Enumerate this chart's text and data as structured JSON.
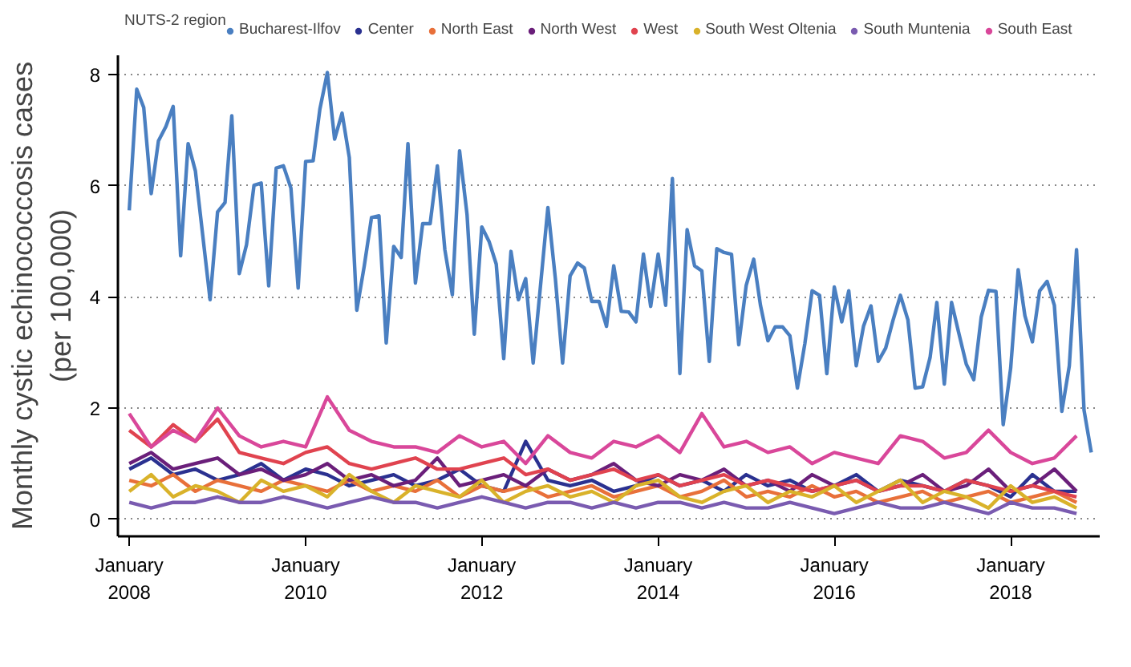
{
  "chart_data": {
    "type": "line",
    "ylabel": "Monthly cystic echinococcosis cases\n(per 100,000)",
    "legend_title": "NUTS-2 region",
    "legend": "top",
    "grid": "y",
    "marker": "none",
    "line_style": "solid",
    "xlim": [
      "2007-11-15",
      "2019-01-05"
    ],
    "xticks": [
      {
        "value": "2008-01-01",
        "label": "January\n2008"
      },
      {
        "value": "2010-01-01",
        "label": "January\n2010"
      },
      {
        "value": "2012-01-01",
        "label": "January\n2012"
      },
      {
        "value": "2014-01-01",
        "label": "January\n2014"
      },
      {
        "value": "2016-01-01",
        "label": "January\n2016"
      },
      {
        "value": "2018-01-01",
        "label": "January\n2018"
      }
    ],
    "ylim": [
      -0.31,
      8.35
    ],
    "yticks": [
      0,
      2,
      4,
      6,
      8
    ],
    "x": [
      "2008-01",
      "2008-04",
      "2008-07",
      "2008-10",
      "2009-01",
      "2009-04",
      "2009-07",
      "2009-10",
      "2010-01",
      "2010-04",
      "2010-07",
      "2010-10",
      "2011-01",
      "2011-04",
      "2011-07",
      "2011-10",
      "2012-01",
      "2012-04",
      "2012-07",
      "2012-10",
      "2013-01",
      "2013-04",
      "2013-07",
      "2013-10",
      "2014-01",
      "2014-04",
      "2014-07",
      "2014-10",
      "2015-01",
      "2015-04",
      "2015-07",
      "2015-10",
      "2016-01",
      "2016-04",
      "2016-07",
      "2016-10",
      "2017-01",
      "2017-04",
      "2017-07",
      "2017-10",
      "2018-01",
      "2018-04",
      "2018-07",
      "2018-10"
    ],
    "series": [
      {
        "name": "Bucharest-Ilfov",
        "color": "#4a7fc1",
        "x": [
          "2008-01",
          "2008-02",
          "2008-03",
          "2008-04",
          "2008-05",
          "2008-06",
          "2008-07",
          "2008-08",
          "2008-09",
          "2008-10",
          "2008-11",
          "2008-12",
          "2009-01",
          "2009-02",
          "2009-03",
          "2009-04",
          "2009-05",
          "2009-06",
          "2009-07",
          "2009-08",
          "2009-09",
          "2009-10",
          "2009-11",
          "2009-12",
          "2010-01",
          "2010-02",
          "2010-03",
          "2010-04",
          "2010-05",
          "2010-06",
          "2010-07",
          "2010-08",
          "2010-09",
          "2010-10",
          "2010-11",
          "2010-12",
          "2011-01",
          "2011-02",
          "2011-03",
          "2011-04",
          "2011-05",
          "2011-06",
          "2011-07",
          "2011-08",
          "2011-09",
          "2011-10",
          "2011-11",
          "2011-12",
          "2012-01",
          "2012-02",
          "2012-03",
          "2012-04",
          "2012-05",
          "2012-06",
          "2012-07",
          "2012-08",
          "2012-09",
          "2012-10",
          "2012-11",
          "2012-12",
          "2013-01",
          "2013-02",
          "2013-03",
          "2013-04",
          "2013-05",
          "2013-06",
          "2013-07",
          "2013-08",
          "2013-09",
          "2013-10",
          "2013-11",
          "2013-12",
          "2014-01",
          "2014-02",
          "2014-03",
          "2014-04",
          "2014-05",
          "2014-06",
          "2014-07",
          "2014-08",
          "2014-09",
          "2014-10",
          "2014-11",
          "2014-12",
          "2015-01",
          "2015-02",
          "2015-03",
          "2015-04",
          "2015-05",
          "2015-06",
          "2015-07",
          "2015-08",
          "2015-09",
          "2015-10",
          "2015-11",
          "2015-12",
          "2016-01",
          "2016-02",
          "2016-03",
          "2016-04",
          "2016-05",
          "2016-06",
          "2016-07",
          "2016-08",
          "2016-09",
          "2016-10",
          "2016-11",
          "2016-12",
          "2017-01",
          "2017-02",
          "2017-03",
          "2017-04",
          "2017-05",
          "2017-06",
          "2017-07",
          "2017-08",
          "2017-09",
          "2017-10",
          "2017-11",
          "2017-12",
          "2018-01",
          "2018-02",
          "2018-03",
          "2018-04",
          "2018-05",
          "2018-06",
          "2018-07",
          "2018-08",
          "2018-09",
          "2018-10",
          "2018-11",
          "2018-12"
        ],
        "values": [
          5.56,
          7.74,
          7.41,
          5.86,
          6.81,
          7.07,
          7.43,
          4.74,
          6.76,
          6.27,
          5.09,
          3.95,
          5.53,
          5.7,
          7.26,
          4.42,
          4.94,
          6.01,
          6.05,
          4.2,
          6.32,
          6.36,
          5.96,
          4.16,
          6.44,
          6.45,
          7.38,
          8.04,
          6.84,
          7.31,
          6.51,
          3.76,
          4.56,
          5.43,
          5.46,
          3.17,
          4.91,
          4.71,
          6.76,
          4.25,
          5.32,
          5.32,
          6.36,
          4.85,
          4.04,
          6.63,
          5.48,
          3.33,
          5.26,
          4.99,
          4.59,
          2.89,
          4.82,
          3.95,
          4.33,
          2.81,
          4.23,
          5.61,
          4.33,
          2.81,
          4.38,
          4.61,
          4.52,
          3.92,
          3.92,
          3.47,
          4.56,
          3.74,
          3.73,
          3.55,
          4.77,
          3.83,
          4.77,
          3.85,
          6.13,
          2.62,
          5.21,
          4.56,
          4.47,
          2.84,
          4.87,
          4.8,
          4.77,
          3.14,
          4.21,
          4.68,
          3.85,
          3.21,
          3.46,
          3.46,
          3.3,
          2.36,
          3.16,
          4.11,
          4.03,
          2.62,
          4.18,
          3.55,
          4.11,
          2.76,
          3.47,
          3.84,
          2.84,
          3.08,
          3.59,
          4.03,
          3.59,
          2.36,
          2.38,
          2.91,
          3.9,
          2.43,
          3.9,
          3.33,
          2.79,
          2.51,
          3.64,
          4.12,
          4.1,
          1.7,
          2.72,
          4.49,
          3.66,
          3.19,
          4.11,
          4.28,
          3.85,
          1.94,
          2.76,
          4.85,
          1.96,
          1.2
        ]
      },
      {
        "name": "Center",
        "color": "#2a3190",
        "values": [
          0.9,
          1.1,
          0.8,
          0.9,
          0.7,
          0.8,
          1.0,
          0.7,
          0.9,
          0.8,
          0.6,
          0.7,
          0.8,
          0.6,
          0.7,
          0.9,
          0.6,
          0.5,
          1.4,
          0.7,
          0.6,
          0.7,
          0.5,
          0.6,
          0.8,
          0.6,
          0.7,
          0.5,
          0.8,
          0.6,
          0.7,
          0.5,
          0.6,
          0.8,
          0.5,
          0.7,
          0.6,
          0.5,
          0.7,
          0.6,
          0.4,
          0.8,
          0.5,
          0.5
        ]
      },
      {
        "name": "North East",
        "color": "#e8703a",
        "values": [
          0.7,
          0.6,
          0.8,
          0.5,
          0.7,
          0.6,
          0.5,
          0.7,
          0.6,
          0.5,
          0.7,
          0.5,
          0.6,
          0.5,
          0.7,
          0.4,
          0.6,
          0.5,
          0.6,
          0.4,
          0.5,
          0.6,
          0.4,
          0.5,
          0.6,
          0.4,
          0.5,
          0.7,
          0.4,
          0.5,
          0.4,
          0.6,
          0.4,
          0.5,
          0.3,
          0.4,
          0.5,
          0.3,
          0.4,
          0.5,
          0.3,
          0.4,
          0.5,
          0.3
        ]
      },
      {
        "name": "North West",
        "color": "#6a1f7a",
        "values": [
          1.0,
          1.2,
          0.9,
          1.0,
          1.1,
          0.8,
          0.9,
          0.7,
          0.8,
          1.0,
          0.7,
          0.8,
          0.6,
          0.7,
          1.1,
          0.6,
          0.7,
          0.8,
          0.6,
          0.9,
          0.7,
          0.8,
          1.0,
          0.7,
          0.6,
          0.8,
          0.7,
          0.9,
          0.6,
          0.7,
          0.5,
          0.8,
          0.6,
          0.7,
          0.5,
          0.6,
          0.8,
          0.5,
          0.6,
          0.9,
          0.5,
          0.6,
          0.9,
          0.5
        ]
      },
      {
        "name": "West",
        "color": "#e0434f",
        "values": [
          1.6,
          1.3,
          1.7,
          1.4,
          1.8,
          1.2,
          1.1,
          1.0,
          1.2,
          1.3,
          1.0,
          0.9,
          1.0,
          1.1,
          0.9,
          0.9,
          1.0,
          1.1,
          0.8,
          0.9,
          0.7,
          0.8,
          0.9,
          0.7,
          0.8,
          0.6,
          0.7,
          0.8,
          0.6,
          0.7,
          0.6,
          0.5,
          0.6,
          0.7,
          0.5,
          0.6,
          0.6,
          0.5,
          0.7,
          0.6,
          0.5,
          0.6,
          0.5,
          0.4
        ]
      },
      {
        "name": "South West Oltenia",
        "color": "#d9b22a",
        "values": [
          0.5,
          0.8,
          0.4,
          0.6,
          0.5,
          0.3,
          0.7,
          0.5,
          0.6,
          0.4,
          0.8,
          0.5,
          0.3,
          0.6,
          0.5,
          0.4,
          0.7,
          0.3,
          0.5,
          0.6,
          0.4,
          0.5,
          0.3,
          0.6,
          0.7,
          0.4,
          0.3,
          0.5,
          0.6,
          0.3,
          0.5,
          0.4,
          0.6,
          0.3,
          0.5,
          0.7,
          0.3,
          0.5,
          0.4,
          0.2,
          0.6,
          0.3,
          0.4,
          0.2
        ]
      },
      {
        "name": "South Muntenia",
        "color": "#7a5bb0",
        "values": [
          0.3,
          0.2,
          0.3,
          0.3,
          0.4,
          0.3,
          0.3,
          0.4,
          0.3,
          0.2,
          0.3,
          0.4,
          0.3,
          0.3,
          0.2,
          0.3,
          0.4,
          0.3,
          0.2,
          0.3,
          0.3,
          0.2,
          0.3,
          0.2,
          0.3,
          0.3,
          0.2,
          0.3,
          0.2,
          0.2,
          0.3,
          0.2,
          0.1,
          0.2,
          0.3,
          0.2,
          0.2,
          0.3,
          0.2,
          0.1,
          0.3,
          0.2,
          0.2,
          0.1
        ]
      },
      {
        "name": "South East",
        "color": "#d9479a",
        "values": [
          1.9,
          1.3,
          1.6,
          1.4,
          2.0,
          1.5,
          1.3,
          1.4,
          1.3,
          2.2,
          1.6,
          1.4,
          1.3,
          1.3,
          1.2,
          1.5,
          1.3,
          1.4,
          1.0,
          1.5,
          1.2,
          1.1,
          1.4,
          1.3,
          1.5,
          1.2,
          1.9,
          1.3,
          1.4,
          1.2,
          1.3,
          1.0,
          1.2,
          1.1,
          1.0,
          1.5,
          1.4,
          1.1,
          1.2,
          1.6,
          1.2,
          1.0,
          1.1,
          1.5
        ]
      }
    ]
  }
}
